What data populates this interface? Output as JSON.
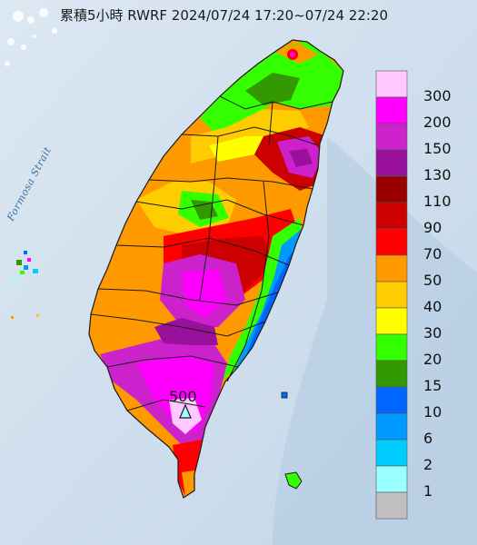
{
  "title": "累積5小時 RWRF 2024/07/24 17:20~07/24 22:20",
  "strait_label": "Formosa Strait",
  "max_marker": {
    "value": "500"
  },
  "legend": {
    "bins": [
      {
        "label": "300",
        "color": "#ffc8ff"
      },
      {
        "label": "200",
        "color": "#ff00ff"
      },
      {
        "label": "150",
        "color": "#cc22cc"
      },
      {
        "label": "130",
        "color": "#99109c"
      },
      {
        "label": "110",
        "color": "#990000"
      },
      {
        "label": "90",
        "color": "#cc0000"
      },
      {
        "label": "70",
        "color": "#ff0000"
      },
      {
        "label": "50",
        "color": "#ff9900"
      },
      {
        "label": "40",
        "color": "#ffcc00"
      },
      {
        "label": "30",
        "color": "#ffff00"
      },
      {
        "label": "20",
        "color": "#33ff00"
      },
      {
        "label": "15",
        "color": "#339900"
      },
      {
        "label": "10",
        "color": "#0066ff"
      },
      {
        "label": "6",
        "color": "#0099ff"
      },
      {
        "label": "2",
        "color": "#00ccff"
      },
      {
        "label": "1",
        "color": "#99ffff"
      },
      {
        "label": "",
        "color": "#c0c0c0"
      }
    ]
  },
  "colors": {
    "sea": "#cfe0ee",
    "ocean_deep": "#a9c6e0",
    "county_border": "#1a1a1a"
  }
}
